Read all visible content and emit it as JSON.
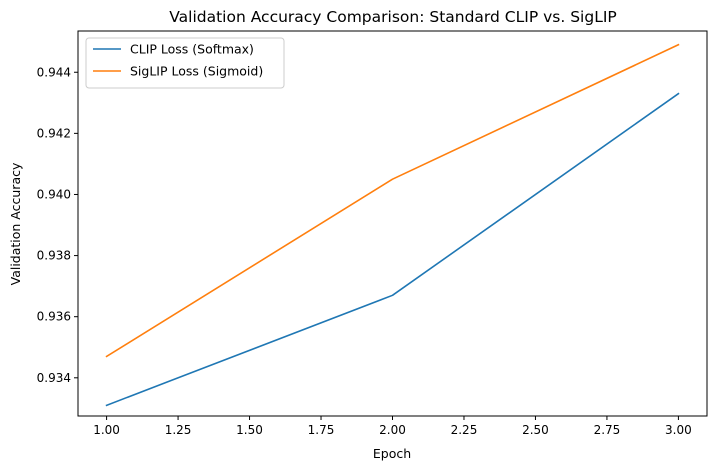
{
  "chart_data": {
    "type": "line",
    "title": "Validation Accuracy Comparison: Standard CLIP vs. SigLIP",
    "xlabel": "Epoch",
    "ylabel": "Validation Accuracy",
    "x": [
      1.0,
      2.0,
      3.0
    ],
    "xlim": [
      0.9,
      3.1
    ],
    "ylim": [
      0.93275,
      0.94535
    ],
    "xticks": [
      1.0,
      1.25,
      1.5,
      1.75,
      2.0,
      2.25,
      2.5,
      2.75,
      3.0
    ],
    "xtick_labels": [
      "1.00",
      "1.25",
      "1.50",
      "1.75",
      "2.00",
      "2.25",
      "2.50",
      "2.75",
      "3.00"
    ],
    "yticks": [
      0.934,
      0.936,
      0.938,
      0.94,
      0.942,
      0.944
    ],
    "ytick_labels": [
      "0.934",
      "0.936",
      "0.938",
      "0.940",
      "0.942",
      "0.944"
    ],
    "grid": false,
    "legend_position": "top-left",
    "series": [
      {
        "name": "CLIP Loss (Softmax)",
        "color": "#1f77b4",
        "values": [
          0.9331,
          0.9367,
          0.9433
        ]
      },
      {
        "name": "SigLIP Loss (Sigmoid)",
        "color": "#ff7f0e",
        "values": [
          0.9347,
          0.9405,
          0.9449
        ]
      }
    ]
  }
}
